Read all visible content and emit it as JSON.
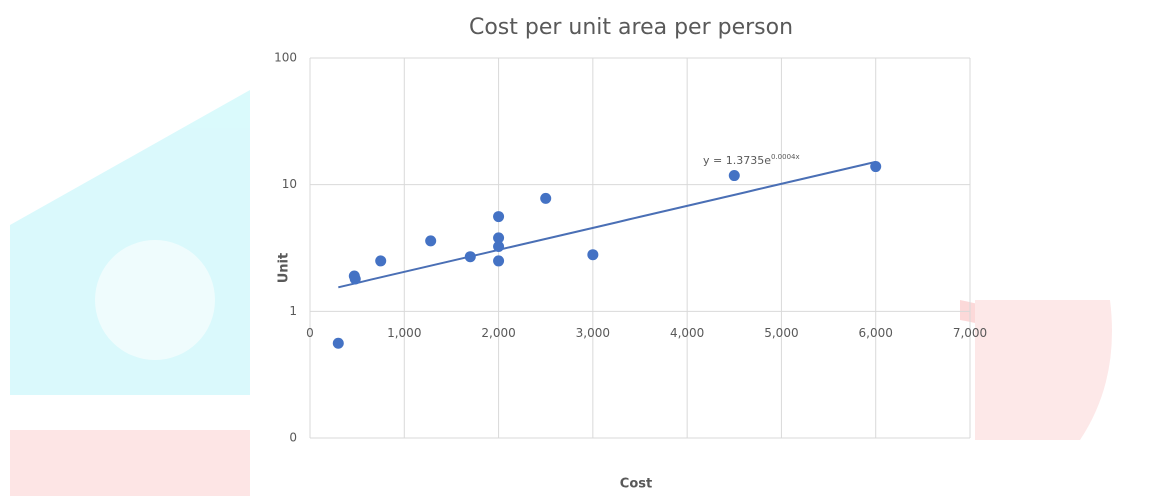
{
  "chart_data": {
    "type": "scatter",
    "title": "Cost per unit area per person",
    "x_label": "Cost",
    "y_label": "Unit",
    "x": [
      300,
      470,
      480,
      750,
      1280,
      1700,
      2000,
      2000,
      2000,
      2000,
      2500,
      3000,
      4500,
      6000
    ],
    "values": [
      0.56,
      1.9,
      1.8,
      2.5,
      3.6,
      2.7,
      5.6,
      3.8,
      3.25,
      2.5,
      7.8,
      2.8,
      11.8,
      13.9
    ],
    "color": "#4472c4",
    "xlim": [
      0,
      7000
    ],
    "xticks": [
      0,
      {
        "value": 1000,
        "label": "1,000"
      },
      {
        "value": 2000,
        "label": "2,000"
      },
      {
        "value": 3000,
        "label": "3,000"
      },
      {
        "value": 4000,
        "label": "4,000"
      },
      {
        "value": 5000,
        "label": "5,000"
      },
      {
        "value": 6000,
        "label": "6,000"
      },
      {
        "value": 7000,
        "label": "7,000"
      }
    ],
    "ylim": [
      0.1,
      100
    ],
    "yticks": [
      {
        "value": 0.1,
        "label": "0"
      },
      1,
      10,
      100
    ],
    "y_log": true,
    "grid": true,
    "trendline": {
      "a": 1.3735,
      "b": 0.0004,
      "xlim": [
        300,
        6000
      ],
      "color": "#4a6fb5",
      "label": "y = 1.3735e",
      "label_exponent": "0.0004x"
    }
  }
}
